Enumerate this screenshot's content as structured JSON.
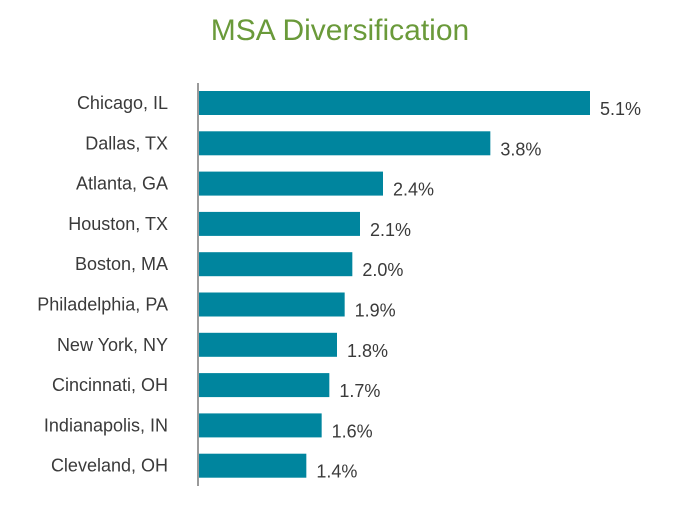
{
  "chart_data": {
    "type": "bar",
    "orientation": "horizontal",
    "title": "MSA Diversification",
    "categories": [
      "Chicago, IL",
      "Dallas, TX",
      "Atlanta, GA",
      "Houston, TX",
      "Boston, MA",
      "Philadelphia, PA",
      "New York, NY",
      "Cincinnati, OH",
      "Indianapolis, IN",
      "Cleveland, OH"
    ],
    "values": [
      5.1,
      3.8,
      2.4,
      2.1,
      2.0,
      1.9,
      1.8,
      1.7,
      1.6,
      1.4
    ],
    "value_labels": [
      "5.1%",
      "3.8%",
      "2.4%",
      "2.1%",
      "2.0%",
      "1.9%",
      "1.8%",
      "1.7%",
      "1.6%",
      "1.4%"
    ],
    "unit": "%",
    "xlim": [
      0,
      5.1
    ],
    "grid": false,
    "legend": "none",
    "colors": {
      "bar": "#00859e",
      "title": "#6a9a3a",
      "axis": "#9a9a9a",
      "text": "#3a3a3a"
    }
  }
}
